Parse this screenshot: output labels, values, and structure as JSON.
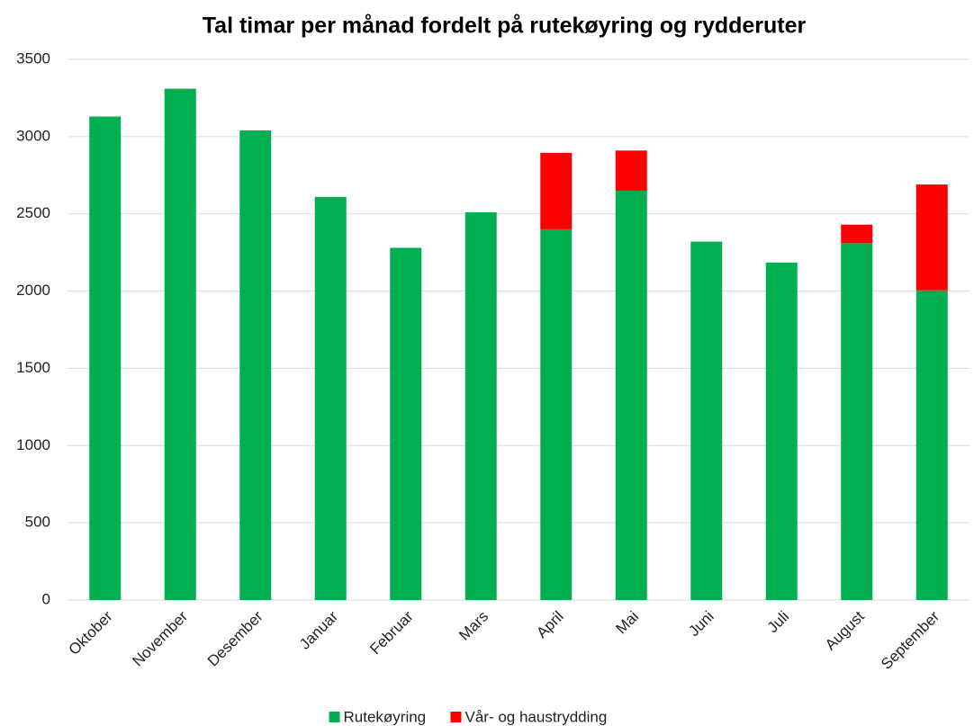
{
  "chart_data": {
    "type": "stacked_bar",
    "title": "Tal timar per månad fordelt på rutekøyring og rydderuter",
    "categories": [
      "Oktober",
      "November",
      "Desember",
      "Januar",
      "Februar",
      "Mars",
      "April",
      "Mai",
      "Juni",
      "Juli",
      "August",
      "September"
    ],
    "series": [
      {
        "name": "Rutekøyring",
        "color": "#00b050",
        "values": [
          3130,
          3310,
          3040,
          2610,
          2280,
          2510,
          2400,
          2650,
          2320,
          2185,
          2310,
          2005
        ]
      },
      {
        "name": "Vår- og haustrydding",
        "color": "#ff0000",
        "values": [
          0,
          0,
          0,
          0,
          0,
          0,
          495,
          260,
          0,
          0,
          120,
          685
        ]
      }
    ],
    "ylim": [
      0,
      3500
    ],
    "yticks": [
      0,
      500,
      1000,
      1500,
      2000,
      2500,
      3000,
      3500
    ],
    "grid": true,
    "legend": "bottom"
  }
}
